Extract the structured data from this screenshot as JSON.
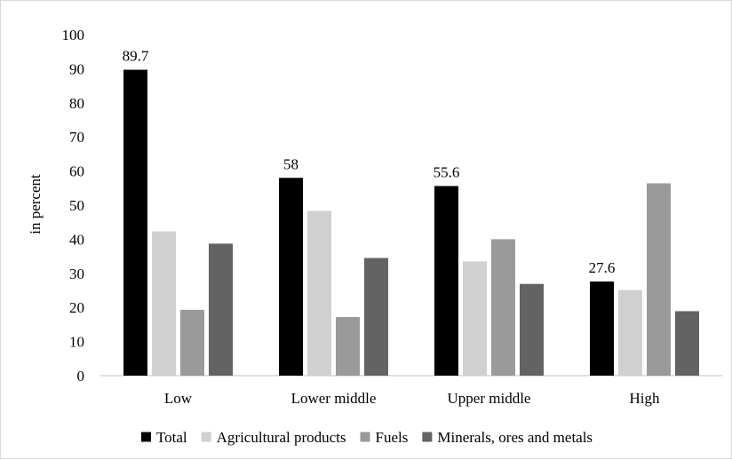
{
  "chart_data": {
    "type": "bar",
    "title": "",
    "xlabel": "",
    "ylabel": "in percent",
    "ylim": [
      0,
      100
    ],
    "yticks": [
      0,
      10,
      20,
      30,
      40,
      50,
      60,
      70,
      80,
      90,
      100
    ],
    "categories": [
      "Low",
      "Lower middle",
      "Upper middle",
      "High"
    ],
    "series": [
      {
        "name": "Total",
        "color": "#000000",
        "values": [
          89.7,
          58,
          55.6,
          27.6
        ],
        "labels": [
          "89.7",
          "58",
          "55.6",
          "27.6"
        ]
      },
      {
        "name": "Agricultural products",
        "color": "#d0d0d0",
        "values": [
          42.3,
          48.3,
          33.5,
          25.1
        ]
      },
      {
        "name": "Fuels",
        "color": "#9a9a9a",
        "values": [
          19.3,
          17.2,
          40.0,
          56.4
        ]
      },
      {
        "name": "Minerals, ores and metals",
        "color": "#636363",
        "values": [
          38.7,
          34.5,
          26.9,
          18.9
        ]
      }
    ],
    "grid": false,
    "legend_position": "bottom"
  }
}
